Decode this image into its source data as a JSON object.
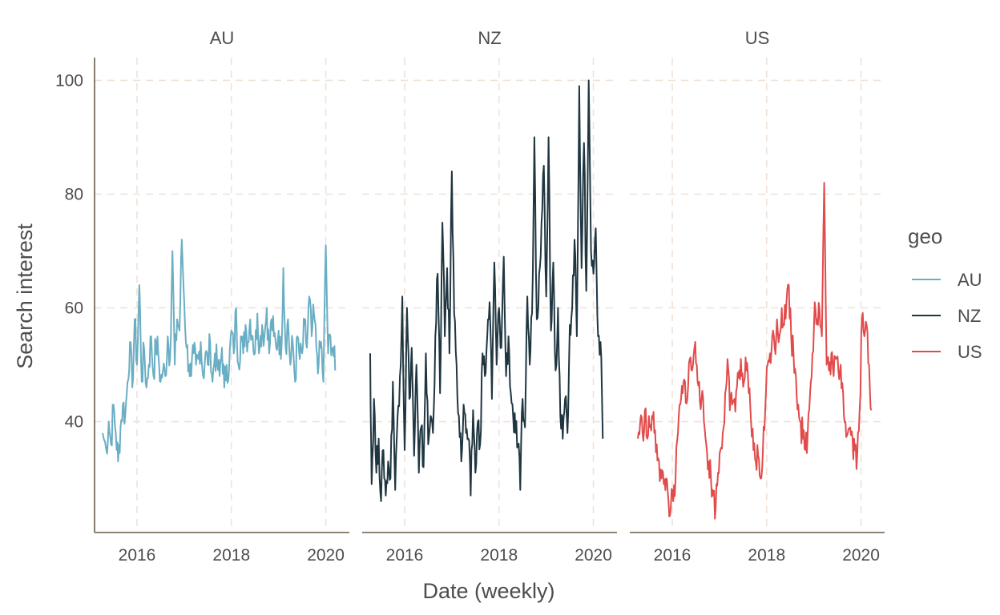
{
  "chart_data": {
    "type": "line",
    "xlabel": "Date (weekly)",
    "ylabel": "Search interest",
    "xlim": [
      2015.1,
      2020.5
    ],
    "ylim": [
      20.5,
      104
    ],
    "x_ticks": [
      2016,
      2018,
      2020
    ],
    "y_ticks": [
      40,
      60,
      80,
      100
    ],
    "grid": true,
    "legend": {
      "title": "geo",
      "position": "right",
      "entries": [
        "AU",
        "NZ",
        "US"
      ]
    },
    "panels": [
      {
        "name": "AU",
        "color": "#6aaec4",
        "x": [
          2015.27,
          2015.35,
          2015.4,
          2015.45,
          2015.5,
          2015.55,
          2015.6,
          2015.65,
          2015.7,
          2015.75,
          2015.8,
          2015.85,
          2015.9,
          2015.95,
          2016.0,
          2016.05,
          2016.1,
          2016.15,
          2016.2,
          2016.25,
          2016.3,
          2016.35,
          2016.4,
          2016.45,
          2016.5,
          2016.55,
          2016.6,
          2016.65,
          2016.7,
          2016.75,
          2016.8,
          2016.85,
          2016.9,
          2016.95,
          2017.0,
          2017.05,
          2017.1,
          2017.15,
          2017.2,
          2017.25,
          2017.3,
          2017.35,
          2017.4,
          2017.45,
          2017.5,
          2017.55,
          2017.6,
          2017.65,
          2017.7,
          2017.75,
          2017.8,
          2017.85,
          2017.9,
          2017.95,
          2018.0,
          2018.05,
          2018.1,
          2018.15,
          2018.2,
          2018.25,
          2018.3,
          2018.35,
          2018.4,
          2018.45,
          2018.5,
          2018.55,
          2018.6,
          2018.65,
          2018.7,
          2018.75,
          2018.8,
          2018.85,
          2018.9,
          2018.95,
          2019.0,
          2019.05,
          2019.1,
          2019.15,
          2019.2,
          2019.25,
          2019.3,
          2019.35,
          2019.4,
          2019.45,
          2019.5,
          2019.55,
          2019.6,
          2019.65,
          2019.7,
          2019.75,
          2019.8,
          2019.85,
          2019.9,
          2019.95,
          2020.0,
          2020.05,
          2020.1,
          2020.15,
          2020.2
        ],
        "values": [
          38,
          35,
          40,
          36,
          43,
          38,
          33,
          39,
          43,
          41,
          47,
          54,
          46,
          58,
          50,
          64,
          47,
          53,
          46,
          50,
          55,
          48,
          54,
          52,
          47,
          49,
          48,
          55,
          51,
          70,
          50,
          58,
          56,
          72,
          61,
          53,
          50,
          48,
          52,
          50,
          51,
          54,
          48,
          52,
          50,
          54,
          47,
          52,
          50,
          48,
          53,
          46,
          50,
          49,
          56,
          52,
          60,
          50,
          55,
          52,
          57,
          54,
          58,
          55,
          52,
          59,
          53,
          57,
          55,
          60,
          52,
          58,
          55,
          53,
          56,
          51,
          67,
          53,
          58,
          50,
          54,
          47,
          55,
          51,
          52,
          57,
          53,
          62,
          55,
          59,
          53,
          50,
          54,
          47,
          71,
          52,
          55,
          53,
          49
        ],
        "baseline": 48
      },
      {
        "name": "NZ",
        "color": "#1f3641",
        "x": [
          2015.27,
          2015.3,
          2015.35,
          2015.4,
          2015.45,
          2015.5,
          2015.55,
          2015.6,
          2015.65,
          2015.7,
          2015.75,
          2015.8,
          2015.85,
          2015.9,
          2015.95,
          2016.0,
          2016.05,
          2016.1,
          2016.15,
          2016.2,
          2016.25,
          2016.3,
          2016.35,
          2016.4,
          2016.45,
          2016.5,
          2016.55,
          2016.6,
          2016.65,
          2016.7,
          2016.75,
          2016.8,
          2016.85,
          2016.9,
          2016.95,
          2017.0,
          2017.05,
          2017.1,
          2017.15,
          2017.2,
          2017.25,
          2017.3,
          2017.35,
          2017.4,
          2017.45,
          2017.5,
          2017.55,
          2017.6,
          2017.65,
          2017.7,
          2017.75,
          2017.8,
          2017.85,
          2017.9,
          2017.95,
          2018.0,
          2018.05,
          2018.1,
          2018.15,
          2018.2,
          2018.25,
          2018.3,
          2018.35,
          2018.4,
          2018.45,
          2018.5,
          2018.55,
          2018.6,
          2018.65,
          2018.7,
          2018.75,
          2018.8,
          2018.85,
          2018.9,
          2018.95,
          2019.0,
          2019.05,
          2019.1,
          2019.15,
          2019.2,
          2019.25,
          2019.3,
          2019.35,
          2019.4,
          2019.45,
          2019.5,
          2019.55,
          2019.6,
          2019.65,
          2019.7,
          2019.75,
          2019.8,
          2019.85,
          2019.9,
          2019.95,
          2020.0,
          2020.05,
          2020.1,
          2020.15,
          2020.2
        ],
        "values": [
          52,
          29,
          44,
          31,
          37,
          26,
          35,
          27,
          33,
          30,
          47,
          28,
          41,
          48,
          62,
          35,
          60,
          44,
          53,
          34,
          50,
          31,
          39,
          32,
          52,
          36,
          41,
          38,
          55,
          66,
          45,
          75,
          55,
          67,
          52,
          84,
          59,
          50,
          41,
          33,
          43,
          38,
          37,
          27,
          42,
          31,
          40,
          36,
          52,
          48,
          55,
          61,
          44,
          68,
          50,
          60,
          53,
          69,
          48,
          55,
          45,
          41,
          38,
          36,
          28,
          44,
          39,
          62,
          50,
          59,
          90,
          58,
          66,
          75,
          85,
          62,
          90,
          56,
          68,
          49,
          60,
          41,
          37,
          44,
          38,
          57,
          60,
          72,
          55,
          99,
          67,
          89,
          63,
          100,
          70,
          66,
          74,
          55,
          54,
          37
        ],
        "baseline": 45
      },
      {
        "name": "US",
        "color": "#e14b4b",
        "x": [
          2015.27,
          2015.32,
          2015.37,
          2015.42,
          2015.47,
          2015.52,
          2015.57,
          2015.62,
          2015.67,
          2015.72,
          2015.77,
          2015.82,
          2015.87,
          2015.92,
          2015.97,
          2016.02,
          2016.07,
          2016.12,
          2016.17,
          2016.22,
          2016.27,
          2016.32,
          2016.37,
          2016.42,
          2016.47,
          2016.52,
          2016.57,
          2016.62,
          2016.67,
          2016.72,
          2016.77,
          2016.82,
          2016.87,
          2016.92,
          2016.97,
          2017.02,
          2017.07,
          2017.12,
          2017.17,
          2017.22,
          2017.27,
          2017.32,
          2017.37,
          2017.42,
          2017.47,
          2017.52,
          2017.57,
          2017.62,
          2017.67,
          2017.72,
          2017.77,
          2017.82,
          2017.87,
          2017.92,
          2017.97,
          2018.02,
          2018.07,
          2018.12,
          2018.17,
          2018.22,
          2018.27,
          2018.32,
          2018.37,
          2018.42,
          2018.47,
          2018.52,
          2018.57,
          2018.62,
          2018.67,
          2018.72,
          2018.77,
          2018.82,
          2018.87,
          2018.92,
          2018.97,
          2019.02,
          2019.07,
          2019.12,
          2019.17,
          2019.22,
          2019.27,
          2019.32,
          2019.37,
          2019.42,
          2019.47,
          2019.52,
          2019.57,
          2019.62,
          2019.67,
          2019.72,
          2019.77,
          2019.82,
          2019.87,
          2019.92,
          2019.97,
          2020.02,
          2020.07,
          2020.12,
          2020.17,
          2020.22
        ],
        "values": [
          37,
          40,
          38,
          42,
          37,
          39,
          41,
          38,
          36,
          33,
          30,
          29,
          30,
          26,
          25,
          26,
          30,
          38,
          43,
          45,
          47,
          44,
          51,
          49,
          53,
          50,
          47,
          44,
          40,
          36,
          33,
          30,
          27,
          25,
          31,
          35,
          38,
          45,
          51,
          42,
          43,
          44,
          46,
          49,
          48,
          47,
          49,
          45,
          40,
          35,
          33,
          34,
          30,
          35,
          42,
          50,
          52,
          55,
          53,
          58,
          55,
          60,
          57,
          61,
          64,
          55,
          52,
          48,
          43,
          40,
          37,
          35,
          38,
          45,
          52,
          61,
          58,
          60,
          55,
          82,
          50,
          49,
          52,
          48,
          51,
          49,
          50,
          45,
          40,
          38,
          39,
          37,
          35,
          34,
          42,
          58,
          55,
          57,
          50,
          42
        ],
        "baseline": 44
      }
    ]
  }
}
